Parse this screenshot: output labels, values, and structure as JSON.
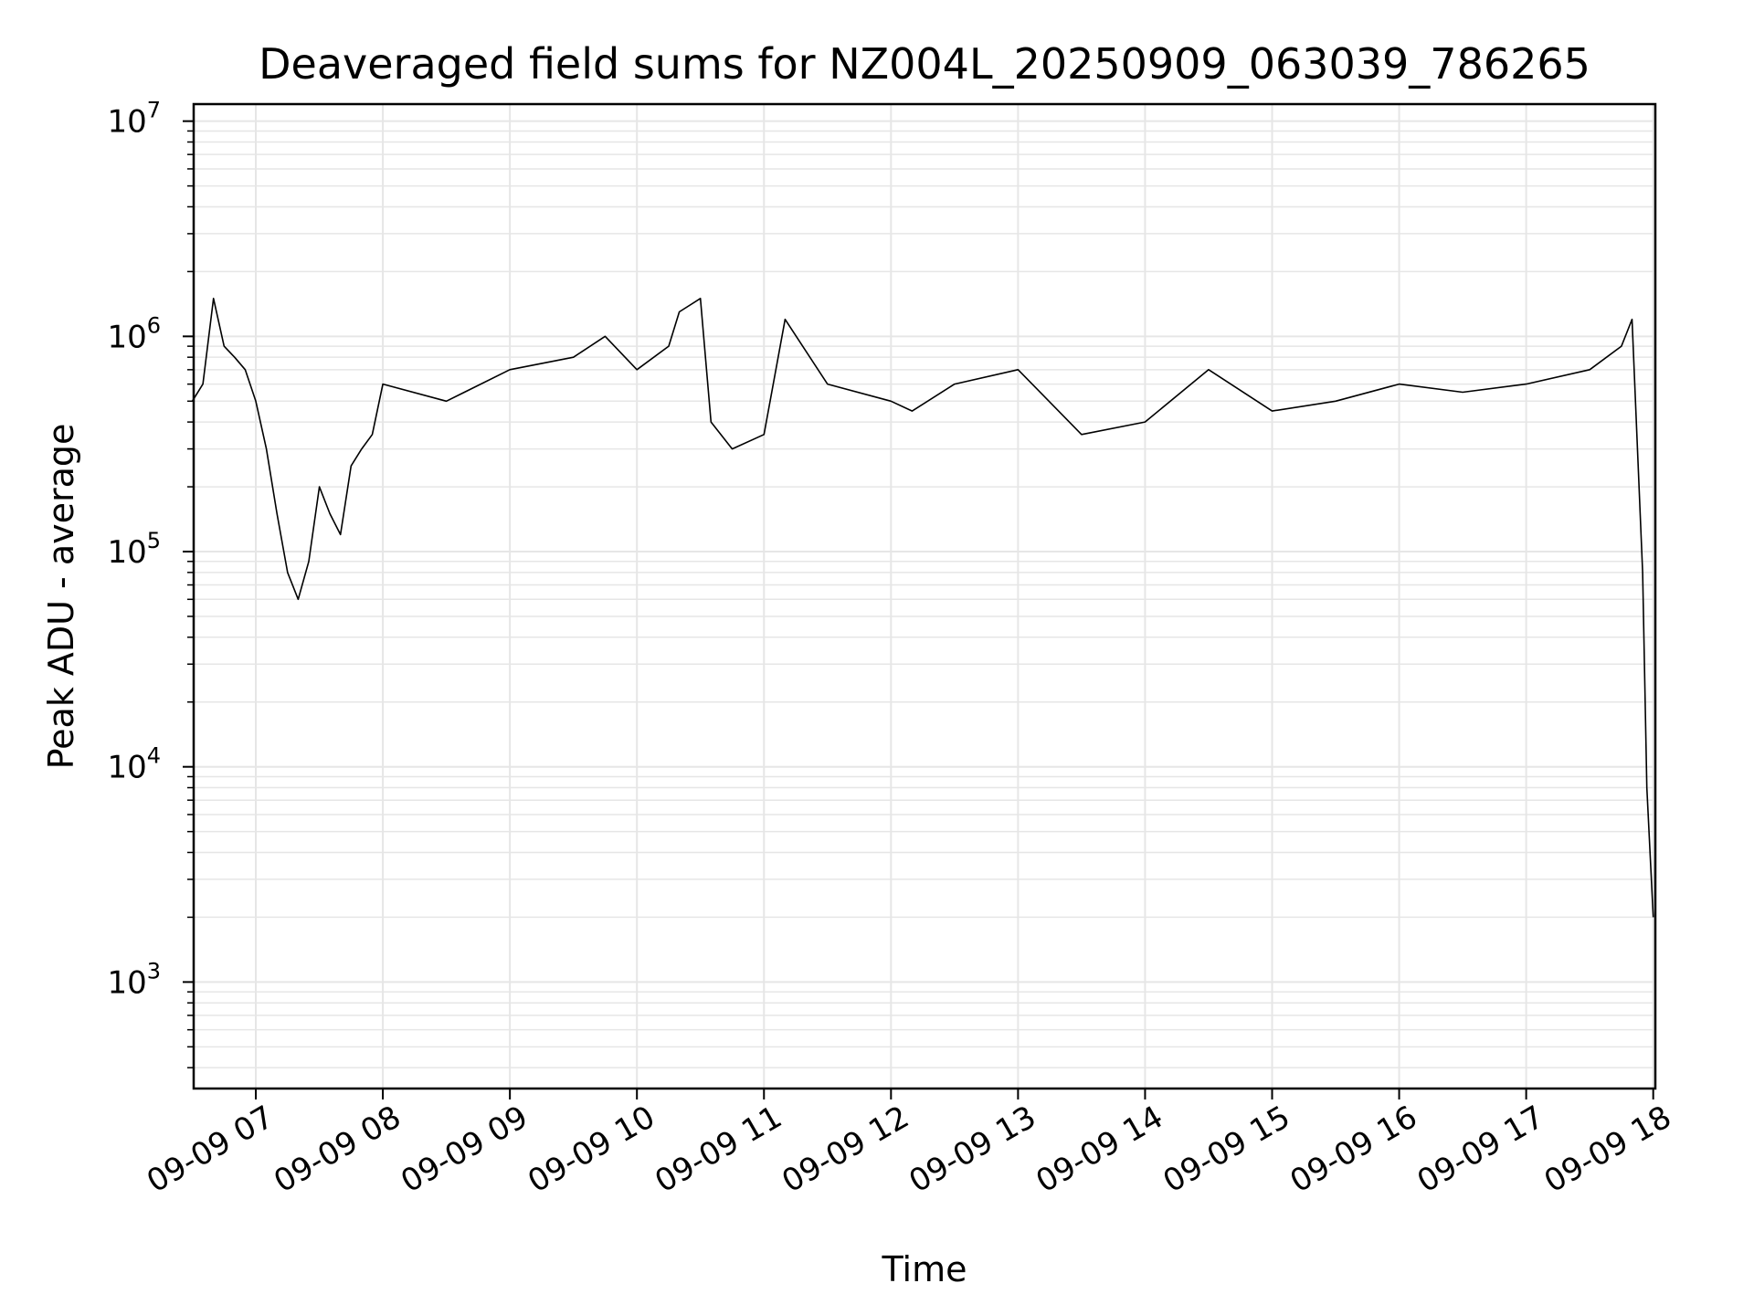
{
  "chart_data": {
    "type": "line",
    "title": "Deaveraged field sums for NZ004L_20250909_063039_786265",
    "xlabel": "Time",
    "ylabel": "Peak ADU - average",
    "yscale": "log",
    "ylim": [
      320,
      12000000
    ],
    "xlim": [
      "2025-09-09T06:30:39",
      "2025-09-09T18:01:00"
    ],
    "grid": true,
    "line_color": "#000000",
    "grid_color": "#e6e6e6",
    "x_ticks": [
      {
        "t": "2025-09-09T07:00",
        "label": "09-09 07"
      },
      {
        "t": "2025-09-09T08:00",
        "label": "09-09 08"
      },
      {
        "t": "2025-09-09T09:00",
        "label": "09-09 09"
      },
      {
        "t": "2025-09-09T10:00",
        "label": "09-09 10"
      },
      {
        "t": "2025-09-09T11:00",
        "label": "09-09 11"
      },
      {
        "t": "2025-09-09T12:00",
        "label": "09-09 12"
      },
      {
        "t": "2025-09-09T13:00",
        "label": "09-09 13"
      },
      {
        "t": "2025-09-09T14:00",
        "label": "09-09 14"
      },
      {
        "t": "2025-09-09T15:00",
        "label": "09-09 15"
      },
      {
        "t": "2025-09-09T16:00",
        "label": "09-09 16"
      },
      {
        "t": "2025-09-09T17:00",
        "label": "09-09 17"
      },
      {
        "t": "2025-09-09T18:00",
        "label": "09-09 18"
      }
    ],
    "y_ticks": [
      {
        "value": 1000,
        "base": "10",
        "exp": "3"
      },
      {
        "value": 10000,
        "base": "10",
        "exp": "4"
      },
      {
        "value": 100000,
        "base": "10",
        "exp": "5"
      },
      {
        "value": 1000000,
        "base": "10",
        "exp": "6"
      },
      {
        "value": 10000000,
        "base": "10",
        "exp": "7"
      }
    ],
    "series": [
      {
        "x": [
          "2025-09-09T06:30",
          "2025-09-09T06:35",
          "2025-09-09T06:40",
          "2025-09-09T06:45",
          "2025-09-09T06:50",
          "2025-09-09T06:55",
          "2025-09-09T07:00",
          "2025-09-09T07:05",
          "2025-09-09T07:10",
          "2025-09-09T07:15",
          "2025-09-09T07:20",
          "2025-09-09T07:25",
          "2025-09-09T07:30",
          "2025-09-09T07:35",
          "2025-09-09T07:40",
          "2025-09-09T07:45",
          "2025-09-09T07:50",
          "2025-09-09T07:55",
          "2025-09-09T08:00",
          "2025-09-09T08:30",
          "2025-09-09T09:00",
          "2025-09-09T09:30",
          "2025-09-09T09:45",
          "2025-09-09T10:00",
          "2025-09-09T10:15",
          "2025-09-09T10:20",
          "2025-09-09T10:30",
          "2025-09-09T10:35",
          "2025-09-09T10:45",
          "2025-09-09T11:00",
          "2025-09-09T11:10",
          "2025-09-09T11:30",
          "2025-09-09T12:00",
          "2025-09-09T12:10",
          "2025-09-09T12:30",
          "2025-09-09T13:00",
          "2025-09-09T13:30",
          "2025-09-09T14:00",
          "2025-09-09T14:30",
          "2025-09-09T15:00",
          "2025-09-09T15:30",
          "2025-09-09T16:00",
          "2025-09-09T16:30",
          "2025-09-09T17:00",
          "2025-09-09T17:30",
          "2025-09-09T17:45",
          "2025-09-09T17:50",
          "2025-09-09T17:55",
          "2025-09-09T17:57",
          "2025-09-09T18:00"
        ],
        "y": [
          500000,
          600000,
          1500000,
          900000,
          800000,
          700000,
          500000,
          300000,
          150000,
          80000,
          60000,
          90000,
          200000,
          150000,
          120000,
          250000,
          300000,
          350000,
          600000,
          500000,
          700000,
          800000,
          1000000,
          700000,
          900000,
          1300000,
          1500000,
          400000,
          300000,
          350000,
          1200000,
          600000,
          500000,
          450000,
          600000,
          700000,
          350000,
          400000,
          700000,
          450000,
          500000,
          600000,
          550000,
          600000,
          700000,
          900000,
          1200000,
          80000,
          8000,
          2000
        ]
      }
    ]
  }
}
